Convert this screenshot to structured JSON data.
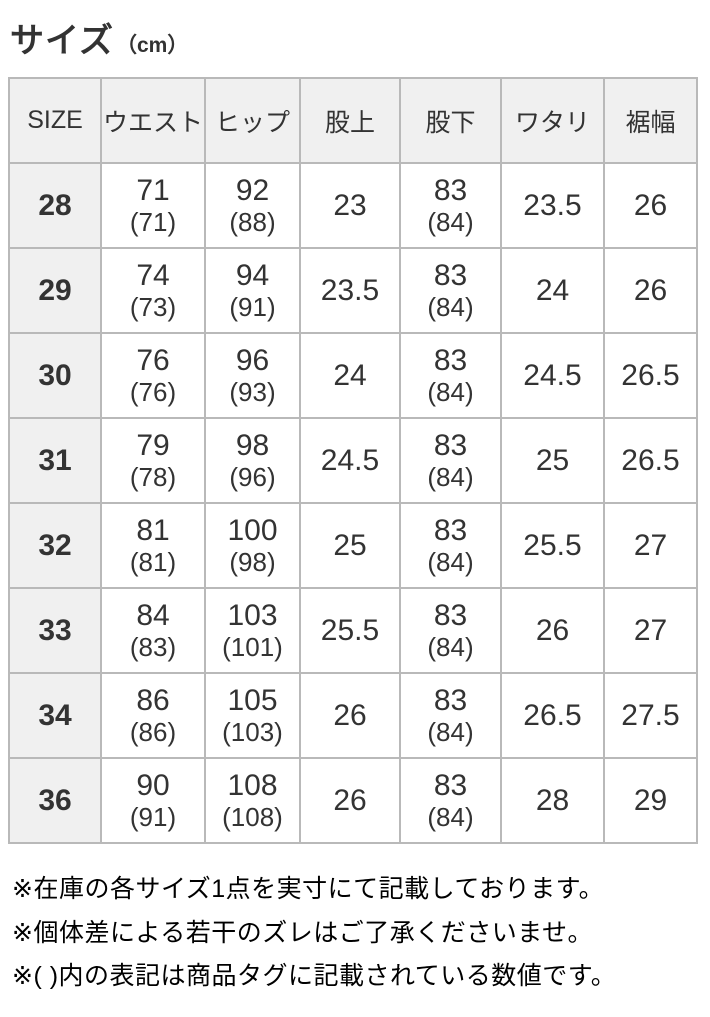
{
  "chart_data": {
    "type": "table",
    "title": {
      "main": "サイズ",
      "unit": "（cm）"
    },
    "columns": [
      "SIZE",
      "ウエスト",
      "ヒップ",
      "股上",
      "股下",
      "ワタリ",
      "裾幅"
    ],
    "rows": [
      {
        "size": "28",
        "cells": [
          {
            "v": "71",
            "tag": "(71)"
          },
          {
            "v": "92",
            "tag": "(88)"
          },
          {
            "v": "23"
          },
          {
            "v": "83",
            "tag": "(84)"
          },
          {
            "v": "23.5"
          },
          {
            "v": "26"
          }
        ]
      },
      {
        "size": "29",
        "cells": [
          {
            "v": "74",
            "tag": "(73)"
          },
          {
            "v": "94",
            "tag": "(91)"
          },
          {
            "v": "23.5"
          },
          {
            "v": "83",
            "tag": "(84)"
          },
          {
            "v": "24"
          },
          {
            "v": "26"
          }
        ]
      },
      {
        "size": "30",
        "cells": [
          {
            "v": "76",
            "tag": "(76)"
          },
          {
            "v": "96",
            "tag": "(93)"
          },
          {
            "v": "24"
          },
          {
            "v": "83",
            "tag": "(84)"
          },
          {
            "v": "24.5"
          },
          {
            "v": "26.5"
          }
        ]
      },
      {
        "size": "31",
        "cells": [
          {
            "v": "79",
            "tag": "(78)"
          },
          {
            "v": "98",
            "tag": "(96)"
          },
          {
            "v": "24.5"
          },
          {
            "v": "83",
            "tag": "(84)"
          },
          {
            "v": "25"
          },
          {
            "v": "26.5"
          }
        ]
      },
      {
        "size": "32",
        "cells": [
          {
            "v": "81",
            "tag": "(81)"
          },
          {
            "v": "100",
            "tag": "(98)"
          },
          {
            "v": "25"
          },
          {
            "v": "83",
            "tag": "(84)"
          },
          {
            "v": "25.5"
          },
          {
            "v": "27"
          }
        ]
      },
      {
        "size": "33",
        "cells": [
          {
            "v": "84",
            "tag": "(83)"
          },
          {
            "v": "103",
            "tag": "(101)"
          },
          {
            "v": "25.5"
          },
          {
            "v": "83",
            "tag": "(84)"
          },
          {
            "v": "26"
          },
          {
            "v": "27"
          }
        ]
      },
      {
        "size": "34",
        "cells": [
          {
            "v": "86",
            "tag": "(86)"
          },
          {
            "v": "105",
            "tag": "(103)"
          },
          {
            "v": "26"
          },
          {
            "v": "83",
            "tag": "(84)"
          },
          {
            "v": "26.5"
          },
          {
            "v": "27.5"
          }
        ]
      },
      {
        "size": "36",
        "cells": [
          {
            "v": "90",
            "tag": "(91)"
          },
          {
            "v": "108",
            "tag": "(108)"
          },
          {
            "v": "26"
          },
          {
            "v": "83",
            "tag": "(84)"
          },
          {
            "v": "28"
          },
          {
            "v": "29"
          }
        ]
      }
    ],
    "notes": [
      "※在庫の各サイズ1点を実寸にて記載しております。",
      "※個体差による若干のズレはご了承くださいませ。",
      "※( )内の表記は商品タグに記載されている数値です。"
    ],
    "colors": {
      "header_bg": "#f0f0f0",
      "border": "#b9b9b9",
      "table_text": "#333333",
      "note_text": "#000000",
      "background": "#ffffff"
    }
  }
}
